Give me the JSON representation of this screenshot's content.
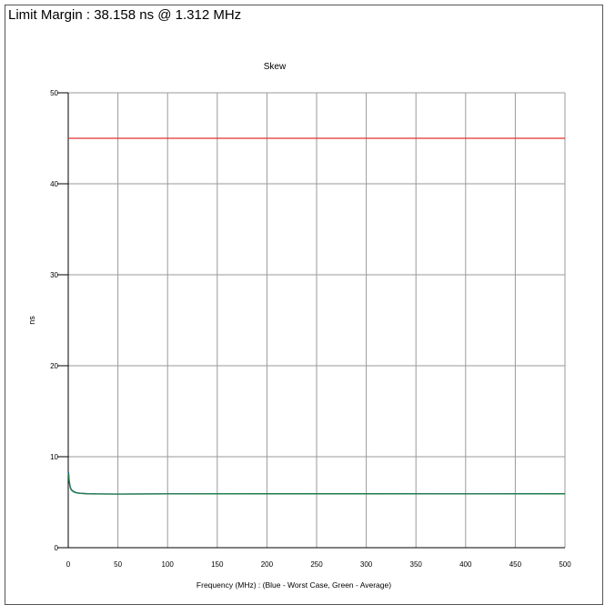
{
  "header": {
    "limit_margin": "Limit Margin : 38.158 ns @ 1.312 MHz"
  },
  "chart_data": {
    "type": "line",
    "title": "Skew",
    "xlabel": "Frequency (MHz) : (Blue - Worst Case, Green - Average)",
    "ylabel": "ns",
    "xlim": [
      0,
      500
    ],
    "ylim": [
      0,
      50
    ],
    "x_ticks": [
      0,
      50,
      100,
      150,
      200,
      250,
      300,
      350,
      400,
      450,
      500
    ],
    "y_ticks": [
      0,
      10,
      20,
      30,
      40,
      50
    ],
    "grid": true,
    "series": [
      {
        "color": "#e03030",
        "x": [
          0,
          500
        ],
        "y": [
          45,
          45
        ]
      },
      {
        "color": "#2040c0",
        "x": [
          0.3,
          1,
          2,
          3,
          5,
          8,
          12,
          20,
          30,
          50,
          100,
          200,
          300,
          400,
          500
        ],
        "y": [
          8.3,
          7.3,
          6.7,
          6.4,
          6.2,
          6.05,
          5.98,
          5.93,
          5.91,
          5.9,
          5.92,
          5.93,
          5.93,
          5.92,
          5.93
        ]
      },
      {
        "color": "#208040",
        "x": [
          0.3,
          1,
          2,
          3,
          5,
          8,
          12,
          20,
          30,
          50,
          100,
          200,
          300,
          400,
          500
        ],
        "y": [
          8.2,
          7.2,
          6.6,
          6.35,
          6.15,
          6.02,
          5.96,
          5.92,
          5.9,
          5.89,
          5.91,
          5.92,
          5.92,
          5.91,
          5.92
        ]
      }
    ]
  }
}
